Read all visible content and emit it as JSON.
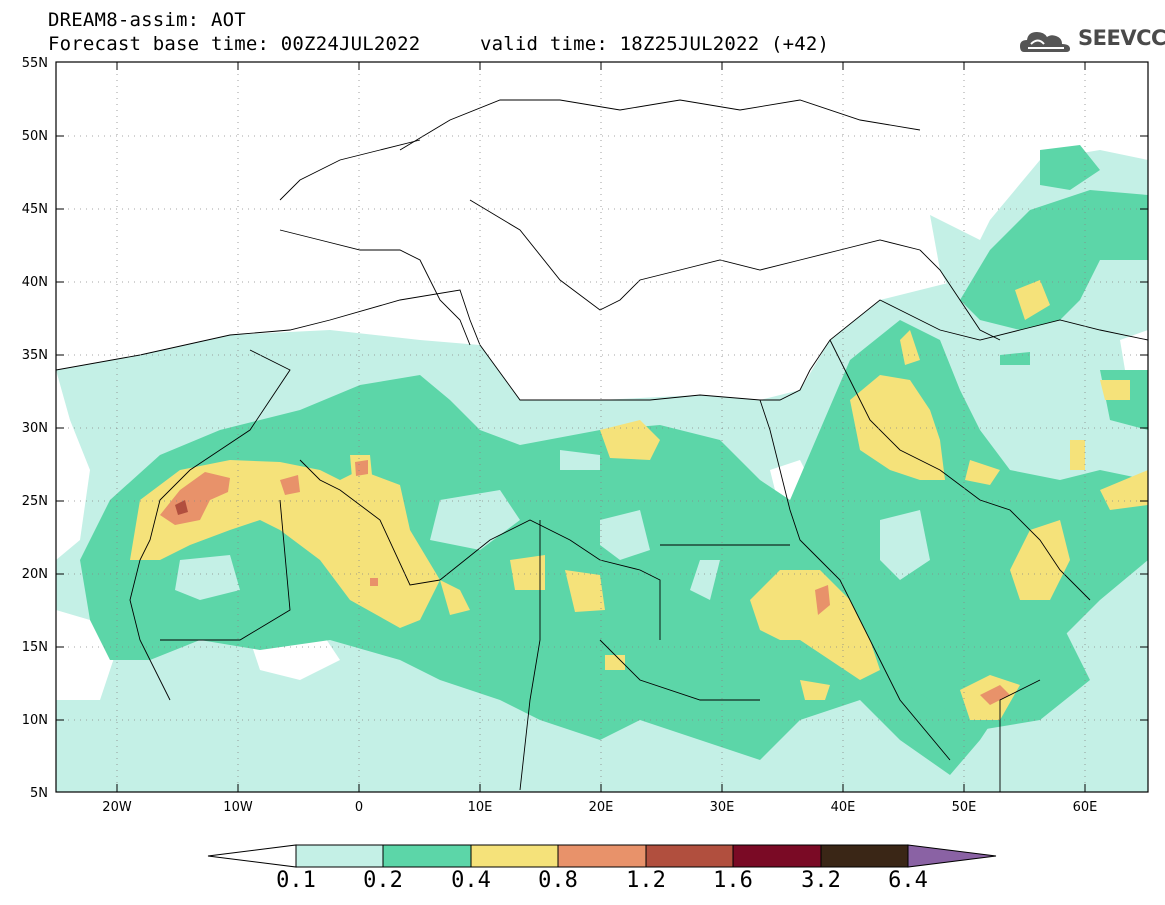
{
  "header": {
    "title": "DREAM8-assim: AOT",
    "base_time": "Forecast base time: 00Z24JUL2022",
    "valid_time": "valid time: 18Z25JUL2022 (+42)",
    "logo_text": "SEEVCCC"
  },
  "map_data": {
    "variable": "AOT",
    "lon_range": [
      -25,
      65
    ],
    "lat_range": [
      5,
      55
    ],
    "lat_ticks": [
      "55N",
      "50N",
      "45N",
      "40N",
      "35N",
      "30N",
      "25N",
      "20N",
      "15N",
      "10N",
      "5N"
    ],
    "lon_ticks": [
      "20W",
      "10W",
      "0",
      "10E",
      "20E",
      "30E",
      "40E",
      "50E",
      "60E"
    ],
    "grid": "dotted"
  },
  "colorbar": {
    "levels": [
      "0.1",
      "0.2",
      "0.4",
      "0.8",
      "1.2",
      "1.6",
      "3.2",
      "6.4"
    ],
    "colors": [
      "#ffffff",
      "#c4f0e6",
      "#5cd6a8",
      "#f5e27a",
      "#e8926a",
      "#b14f3e",
      "#7a0a25",
      "#3a2616",
      "#8a62a4"
    ]
  },
  "palette": {
    "c1": "#c4f0e6",
    "c2": "#5cd6a8",
    "c3": "#f5e27a",
    "c4": "#e8926a",
    "c5": "#b14f3e"
  }
}
